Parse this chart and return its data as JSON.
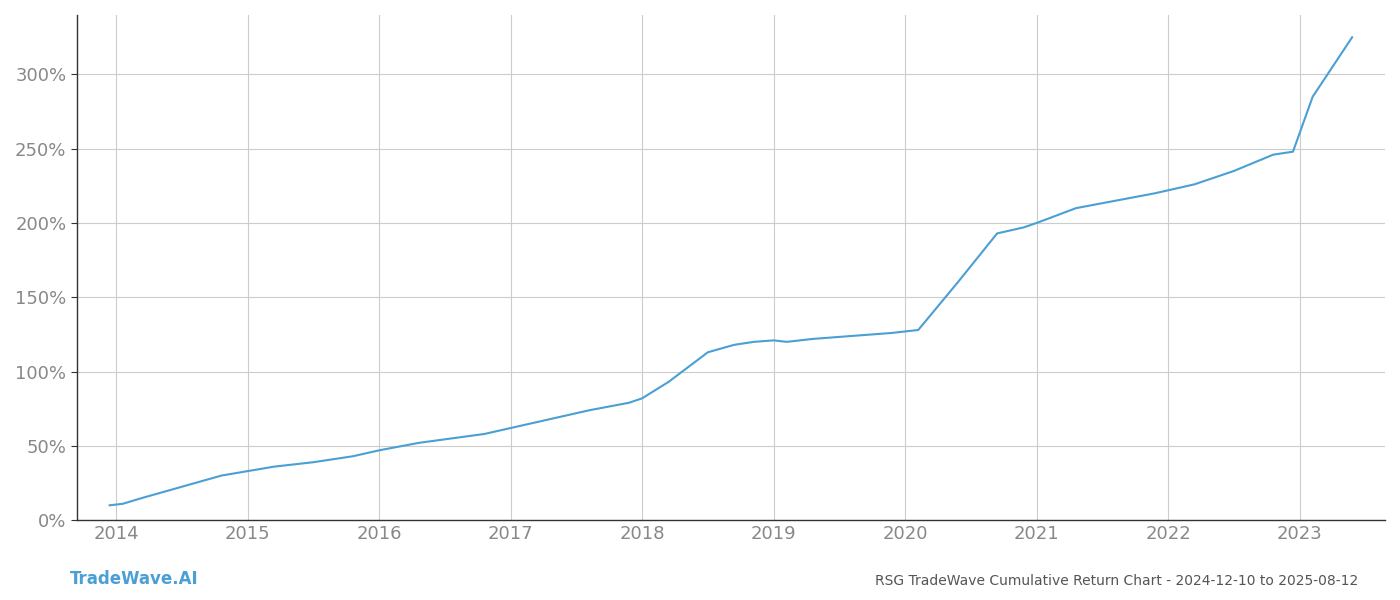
{
  "title": "RSG TradeWave Cumulative Return Chart - 2024-12-10 to 2025-08-12",
  "watermark": "TradeWave.AI",
  "line_color": "#4a9fd4",
  "background_color": "#ffffff",
  "grid_color": "#cccccc",
  "axis_color": "#888888",
  "spine_color": "#333333",
  "title_color": "#555555",
  "watermark_color": "#4a9fd4",
  "x_years": [
    2014,
    2015,
    2016,
    2017,
    2018,
    2019,
    2020,
    2021,
    2022,
    2023
  ],
  "data_x": [
    2013.95,
    2014.05,
    2014.2,
    2014.4,
    2014.6,
    2014.8,
    2015.0,
    2015.2,
    2015.5,
    2015.8,
    2016.0,
    2016.3,
    2016.55,
    2016.8,
    2017.0,
    2017.3,
    2017.6,
    2017.9,
    2018.0,
    2018.2,
    2018.5,
    2018.7,
    2018.85,
    2019.0,
    2019.1,
    2019.3,
    2019.6,
    2019.9,
    2020.0,
    2020.1,
    2020.4,
    2020.7,
    2020.9,
    2021.0,
    2021.3,
    2021.6,
    2021.9,
    2022.0,
    2022.2,
    2022.5,
    2022.8,
    2022.95,
    2023.1,
    2023.4
  ],
  "data_y": [
    10,
    11,
    15,
    20,
    25,
    30,
    33,
    36,
    39,
    43,
    47,
    52,
    55,
    58,
    62,
    68,
    74,
    79,
    82,
    93,
    113,
    118,
    120,
    121,
    120,
    122,
    124,
    126,
    127,
    128,
    160,
    193,
    197,
    200,
    210,
    215,
    220,
    222,
    226,
    235,
    246,
    248,
    285,
    325
  ],
  "ylim": [
    0,
    340
  ],
  "yticks": [
    0,
    50,
    100,
    150,
    200,
    250,
    300
  ],
  "xlim": [
    2013.7,
    2023.65
  ],
  "line_width": 1.5,
  "tick_fontsize": 13,
  "title_fontsize": 10,
  "watermark_fontsize": 12
}
